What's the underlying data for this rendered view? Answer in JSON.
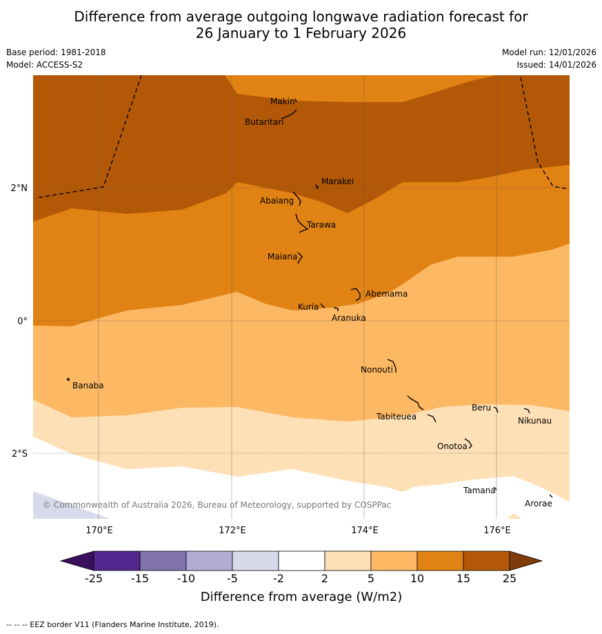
{
  "title": {
    "line1": "Difference from average outgoing longwave radiation forecast for",
    "line2": "26 January to 1 February 2026"
  },
  "meta": {
    "base_period": "Base period: 1981-2018",
    "model": "Model: ACCESS-S2",
    "model_run": "Model run: 12/01/2026",
    "issued": "Issued: 14/01/2026"
  },
  "axes": {
    "lat_labels": [
      "2°N",
      "0°",
      "2°S"
    ],
    "lon_labels": [
      "170°E",
      "172°E",
      "174°E",
      "176°E"
    ]
  },
  "places": [
    {
      "name": "Makin"
    },
    {
      "name": "Butaritari"
    },
    {
      "name": "Marakei"
    },
    {
      "name": "Abaiang"
    },
    {
      "name": "Tarawa"
    },
    {
      "name": "Maiana"
    },
    {
      "name": "Abemama"
    },
    {
      "name": "Kuria"
    },
    {
      "name": "Aranuka"
    },
    {
      "name": "Banaba"
    },
    {
      "name": "Nonouti"
    },
    {
      "name": "Beru"
    },
    {
      "name": "Tabiteuea"
    },
    {
      "name": "Nikunau"
    },
    {
      "name": "Onotoa"
    },
    {
      "name": "Tamana"
    },
    {
      "name": "Arorae"
    }
  ],
  "copyright": "© Commonwealth of Australia 2026, Bureau of Meteorology, supported by COSPPac",
  "colorbar": {
    "ticks": [
      "-25",
      "-15",
      "-10",
      "-5",
      "-2",
      "2",
      "5",
      "10",
      "15",
      "25"
    ],
    "colors": [
      "#3a0f5c",
      "#54278f",
      "#8073ac",
      "#b2abd2",
      "#d8daeb",
      "#ffffff",
      "#fee0b6",
      "#fdb863",
      "#e08214",
      "#b35806",
      "#7f3b08"
    ],
    "label": "Difference from average (W/m2)"
  },
  "footnote": "--  --  -- EEZ border V11 (Flanders Marine Institute, 2019)."
}
